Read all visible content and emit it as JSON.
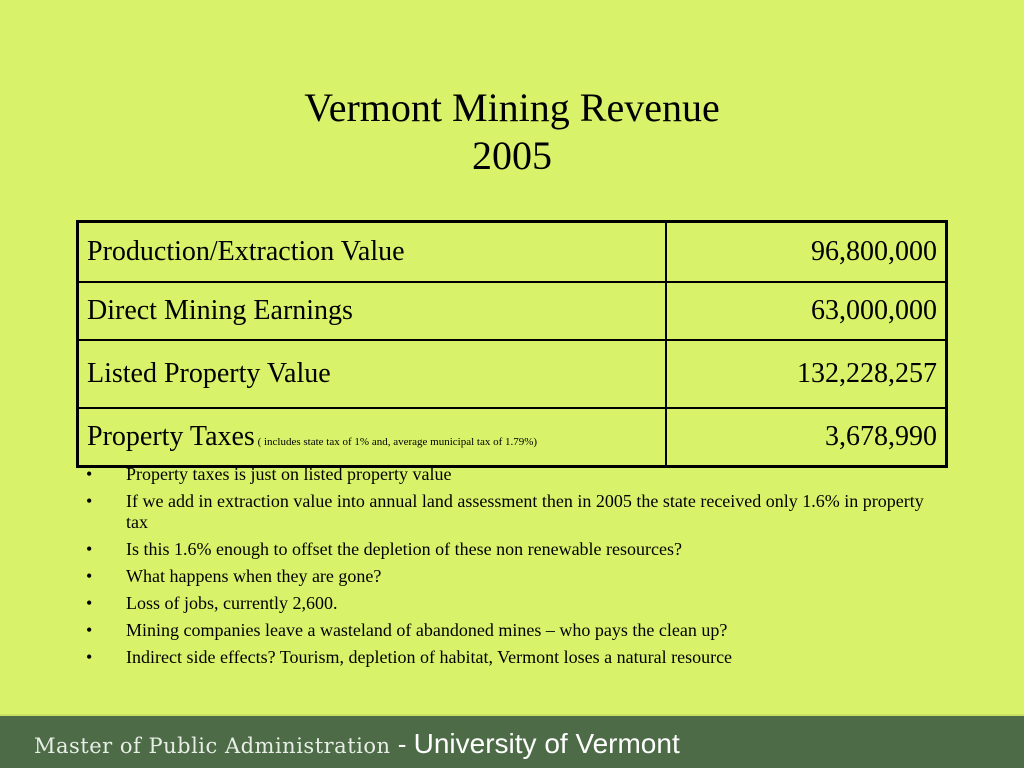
{
  "title": {
    "line1": "Vermont Mining Revenue",
    "line2": "2005"
  },
  "table": {
    "rows": [
      {
        "label": "Production/Extraction Value",
        "value": "96,800,000"
      },
      {
        "label": "Direct Mining Earnings",
        "value": "63,000,000"
      },
      {
        "label": "Listed Property Value",
        "value": "132,228,257"
      },
      {
        "label": "Property Taxes",
        "note": " ( includes state tax of 1% and,  average municipal tax of 1.79%)",
        "value": "3,678,990"
      }
    ]
  },
  "bullets": [
    "Property taxes is just on listed property value",
    "If we add in extraction value into annual land assessment then in 2005 the state received only 1.6% in property tax",
    "Is this 1.6% enough to offset the depletion of these non renewable resources?",
    "What happens when they are gone?",
    "Loss of jobs, currently 2,600.",
    "Mining companies leave a wasteland of abandoned mines – who pays the clean up?",
    "Indirect side effects? Tourism, depletion of habitat, Vermont loses a natural resource"
  ],
  "footer": {
    "program": "Master of Public Administration",
    "separator": " - ",
    "university": "University of Vermont"
  },
  "colors": {
    "background": "#d8f36a",
    "footer": "#4d6b47"
  }
}
